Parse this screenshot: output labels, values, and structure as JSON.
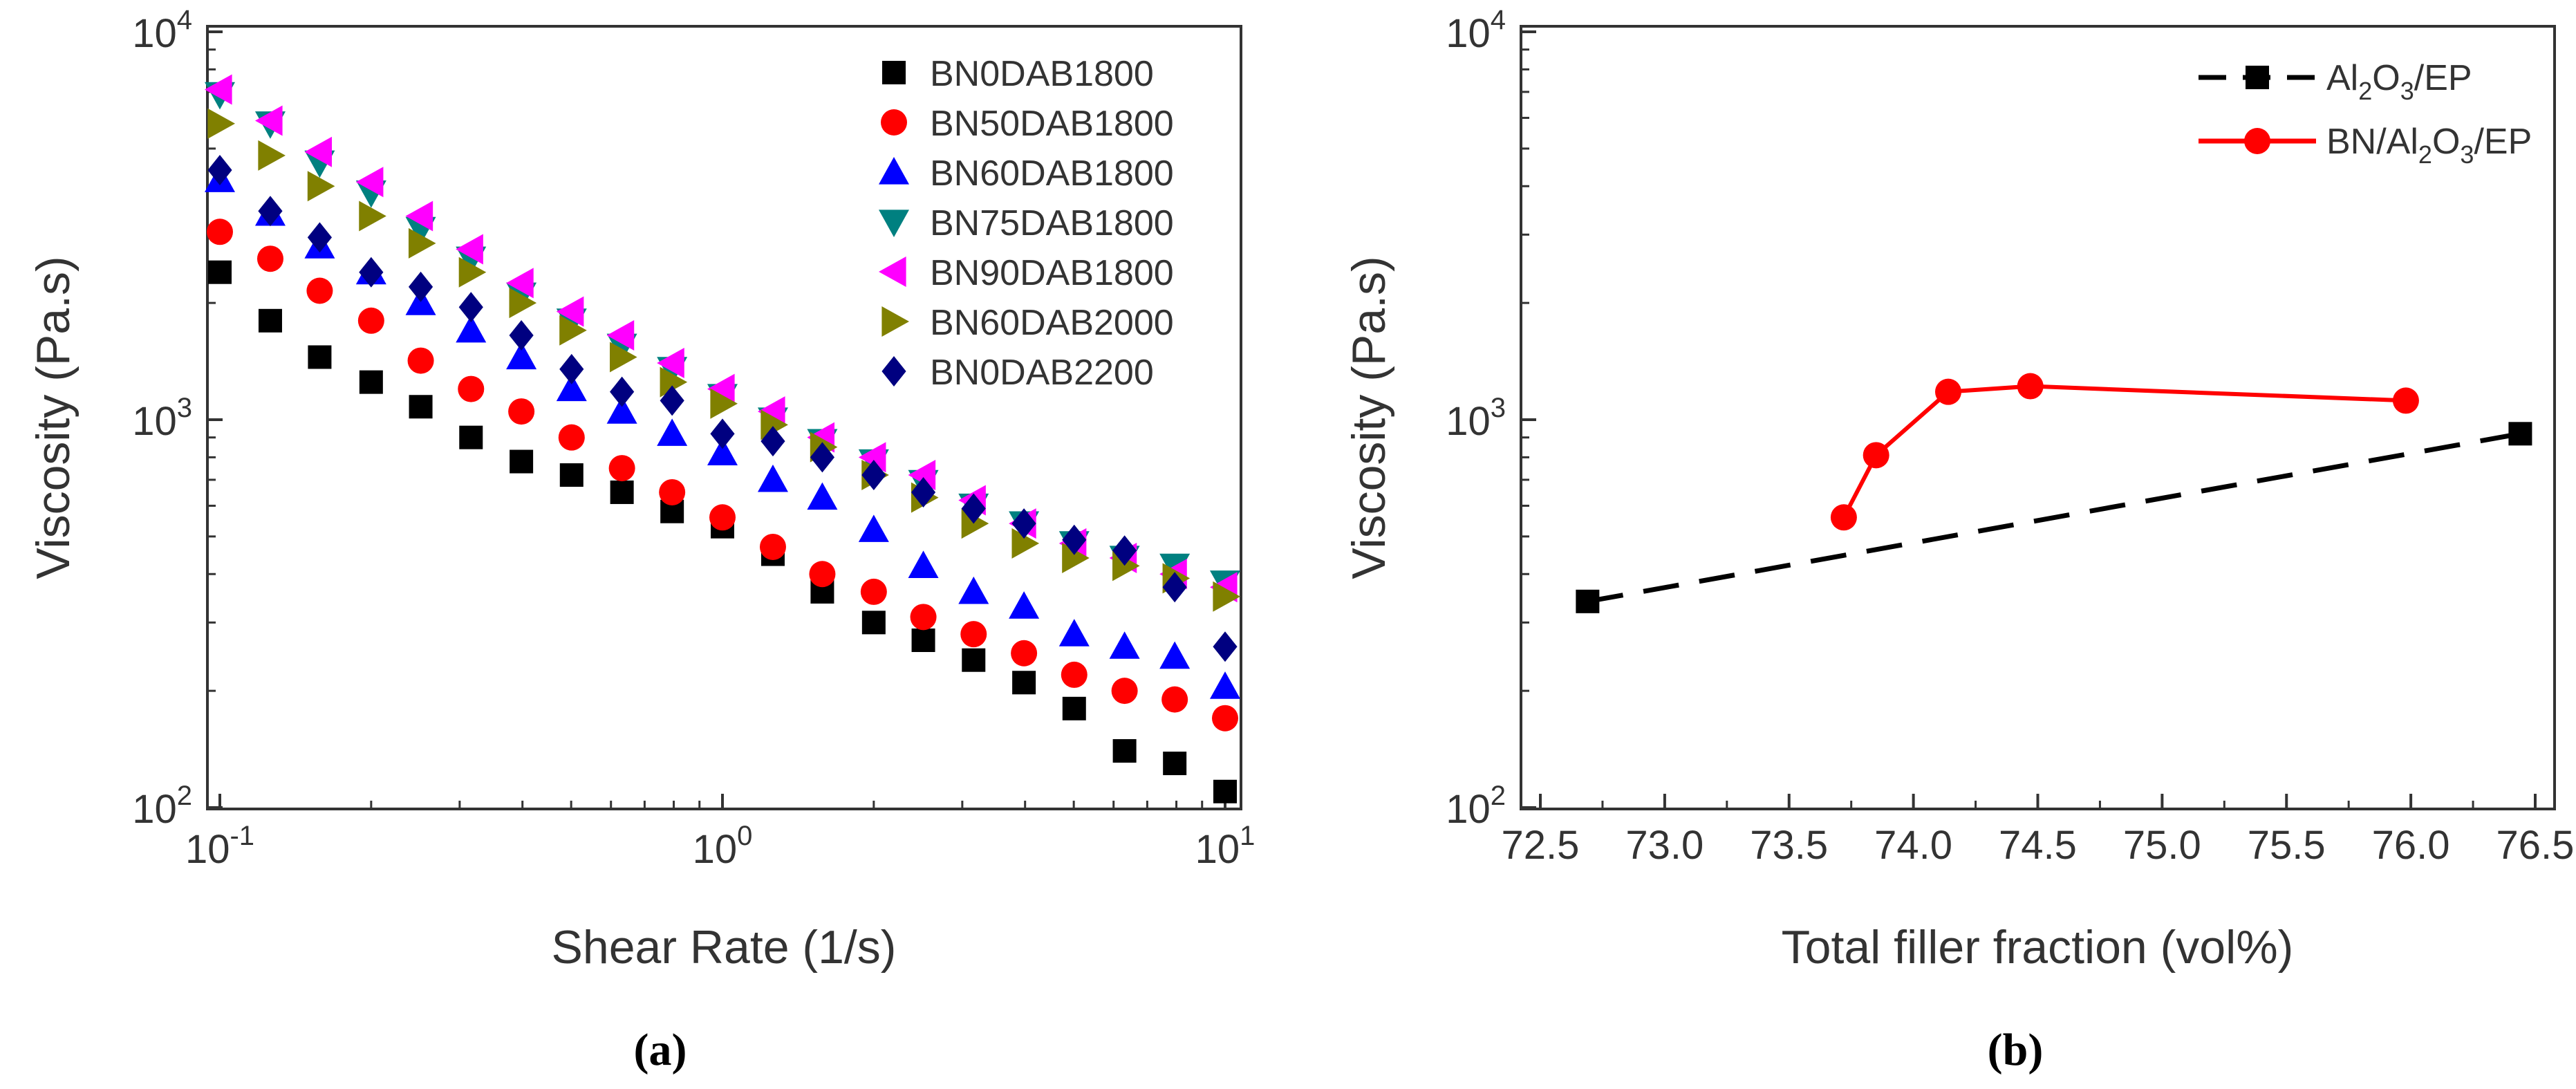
{
  "chart_data": [
    {
      "type": "scatter",
      "caption": "(a)",
      "xlabel": "Shear Rate (1/s)",
      "ylabel": "Viscosity (Pa.s)",
      "xscale": "log",
      "yscale": "log",
      "xlim": [
        0.09,
        11
      ],
      "ylim": [
        100,
        10000
      ],
      "xticks": [
        {
          "value": 0.1,
          "base": "10",
          "exp": "-1"
        },
        {
          "value": 1,
          "base": "10",
          "exp": "0"
        },
        {
          "value": 10,
          "base": "10",
          "exp": "1"
        }
      ],
      "yticks": [
        {
          "value": 100,
          "base": "10",
          "exp": "2"
        },
        {
          "value": 1000,
          "base": "10",
          "exp": "3"
        },
        {
          "value": 10000,
          "base": "10",
          "exp": "4"
        }
      ],
      "legend_position": "top-right",
      "x": [
        0.1,
        0.126,
        0.158,
        0.2,
        0.251,
        0.316,
        0.398,
        0.501,
        0.631,
        0.794,
        1.0,
        1.26,
        1.58,
        2.0,
        2.51,
        3.16,
        3.98,
        5.01,
        6.31,
        7.94,
        10.0
      ],
      "series": [
        {
          "name": "BN0DAB1800",
          "marker": "square",
          "color": "#000000",
          "values": [
            2400,
            1800,
            1450,
            1250,
            1080,
            900,
            780,
            720,
            650,
            580,
            530,
            450,
            360,
            300,
            270,
            240,
            210,
            180,
            140,
            130,
            110
          ]
        },
        {
          "name": "BN50DAB1800",
          "marker": "circle",
          "color": "#ff0000",
          "values": [
            3050,
            2600,
            2150,
            1800,
            1420,
            1200,
            1050,
            900,
            750,
            650,
            560,
            470,
            400,
            360,
            310,
            280,
            250,
            220,
            200,
            190,
            170
          ]
        },
        {
          "name": "BN60DAB1800",
          "marker": "triangle-up",
          "color": "#0000ff",
          "values": [
            4150,
            3400,
            2800,
            2400,
            2000,
            1700,
            1450,
            1200,
            1050,
            920,
            820,
            700,
            630,
            520,
            420,
            360,
            330,
            280,
            260,
            245,
            205
          ]
        },
        {
          "name": "BN75DAB1800",
          "marker": "triangle-down",
          "color": "#008080",
          "values": [
            6900,
            5800,
            4600,
            3850,
            3100,
            2600,
            2100,
            1800,
            1550,
            1350,
            1150,
            1000,
            880,
            780,
            690,
            600,
            540,
            480,
            440,
            420,
            380
          ]
        },
        {
          "name": "BN90DAB1800",
          "marker": "triangle-left",
          "color": "#ff00ff",
          "values": [
            7100,
            5900,
            4900,
            4100,
            3350,
            2750,
            2250,
            1900,
            1650,
            1400,
            1200,
            1050,
            900,
            800,
            720,
            620,
            540,
            480,
            440,
            400,
            370
          ]
        },
        {
          "name": "BN60DAB2000",
          "marker": "triangle-right",
          "color": "#808000",
          "values": [
            5800,
            4800,
            4000,
            3350,
            2850,
            2400,
            2000,
            1700,
            1450,
            1250,
            1100,
            970,
            850,
            720,
            630,
            540,
            480,
            440,
            420,
            390,
            350
          ]
        },
        {
          "name": "BN0DAB2200",
          "marker": "diamond",
          "color": "#000080",
          "values": [
            4400,
            3450,
            2950,
            2400,
            2200,
            1950,
            1650,
            1350,
            1180,
            1120,
            920,
            880,
            800,
            720,
            650,
            590,
            540,
            490,
            460,
            370,
            260
          ]
        }
      ]
    },
    {
      "type": "line",
      "caption": "(b)",
      "xlabel": "Total filler fraction (vol%)",
      "ylabel": "Viscosity (Pa.s)",
      "xscale": "linear",
      "yscale": "log",
      "xlim": [
        72.5,
        76.5
      ],
      "ylim": [
        100,
        10000
      ],
      "xticks": [
        "72.5",
        "73.0",
        "73.5",
        "74.0",
        "74.5",
        "75.0",
        "75.5",
        "76.0",
        "76.5"
      ],
      "yticks": [
        {
          "value": 100,
          "base": "10",
          "exp": "2"
        },
        {
          "value": 1000,
          "base": "10",
          "exp": "3"
        },
        {
          "value": 10000,
          "base": "10",
          "exp": "4"
        }
      ],
      "legend_position": "top-right",
      "series": [
        {
          "name": "Al2O3/EP",
          "label_parts": [
            "Al",
            "2",
            "O",
            "3",
            "/EP"
          ],
          "marker": "square",
          "line": "dashed",
          "color": "#000000",
          "x": [
            72.69,
            76.44
          ],
          "values": [
            340,
            920
          ]
        },
        {
          "name": "BN/Al2O3/EP",
          "label_parts": [
            "BN/Al",
            "2",
            "O",
            "3",
            "/EP"
          ],
          "marker": "circle",
          "line": "solid",
          "color": "#ff0000",
          "x": [
            73.72,
            73.85,
            74.14,
            74.47,
            75.98
          ],
          "values": [
            560,
            810,
            1180,
            1220,
            1120
          ]
        }
      ]
    }
  ]
}
